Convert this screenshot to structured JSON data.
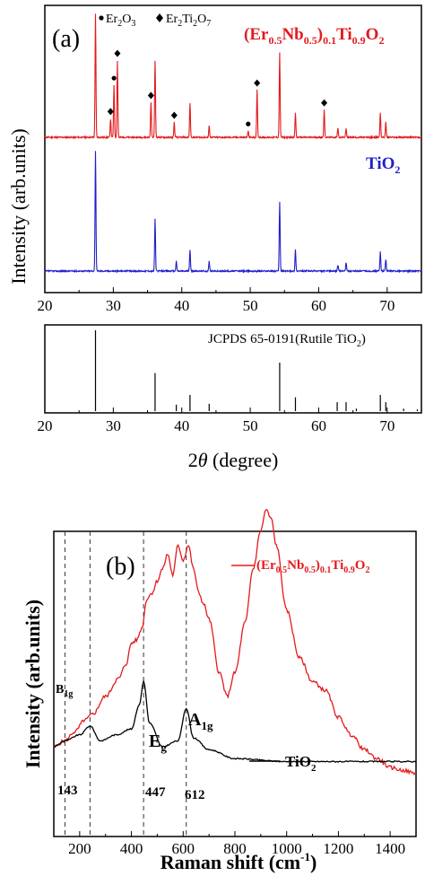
{
  "chart_data": [
    {
      "panel": "(a)",
      "type": "line",
      "xlabel": "2θ (degree)",
      "ylabel": "Intensity (arb.units)",
      "xlim": [
        20,
        75
      ],
      "xticks": [
        "20",
        "30",
        "40",
        "50",
        "60",
        "70"
      ],
      "marker_legend": {
        "dot": "Er2O3",
        "diamond": "Er2Ti2O7"
      },
      "series": [
        {
          "name": "(Er0.5Nb0.5)0.1Ti0.9O2",
          "color": "#e31a1c",
          "peaks": [
            {
              "x": 27.4,
              "h": 1.0
            },
            {
              "x": 29.6,
              "h": 0.15
            },
            {
              "x": 30.1,
              "h": 0.42
            },
            {
              "x": 30.6,
              "h": 0.62
            },
            {
              "x": 35.5,
              "h": 0.28
            },
            {
              "x": 36.1,
              "h": 0.62
            },
            {
              "x": 38.9,
              "h": 0.12
            },
            {
              "x": 41.2,
              "h": 0.28
            },
            {
              "x": 44.0,
              "h": 0.09
            },
            {
              "x": 49.7,
              "h": 0.05
            },
            {
              "x": 51.0,
              "h": 0.38
            },
            {
              "x": 54.3,
              "h": 0.68
            },
            {
              "x": 56.6,
              "h": 0.2
            },
            {
              "x": 60.8,
              "h": 0.22
            },
            {
              "x": 62.8,
              "h": 0.08
            },
            {
              "x": 64.0,
              "h": 0.07
            },
            {
              "x": 69.0,
              "h": 0.2
            },
            {
              "x": 69.8,
              "h": 0.12
            }
          ],
          "markers": [
            {
              "x": 29.6,
              "type": "diamond"
            },
            {
              "x": 30.1,
              "type": "dot"
            },
            {
              "x": 30.6,
              "type": "diamond"
            },
            {
              "x": 35.5,
              "type": "diamond"
            },
            {
              "x": 38.9,
              "type": "diamond"
            },
            {
              "x": 49.7,
              "type": "dot"
            },
            {
              "x": 51.0,
              "type": "diamond"
            },
            {
              "x": 60.8,
              "type": "diamond"
            }
          ]
        },
        {
          "name": "TiO2",
          "color": "#1f1fcc",
          "peaks": [
            {
              "x": 27.4,
              "h": 1.0
            },
            {
              "x": 36.1,
              "h": 0.43
            },
            {
              "x": 39.2,
              "h": 0.08
            },
            {
              "x": 41.2,
              "h": 0.18
            },
            {
              "x": 44.0,
              "h": 0.08
            },
            {
              "x": 54.3,
              "h": 0.58
            },
            {
              "x": 56.6,
              "h": 0.18
            },
            {
              "x": 62.8,
              "h": 0.05
            },
            {
              "x": 64.0,
              "h": 0.07
            },
            {
              "x": 69.0,
              "h": 0.16
            },
            {
              "x": 69.8,
              "h": 0.1
            }
          ]
        }
      ],
      "reference": {
        "label": "JCPDS 65-0191(Rutile TiO2)",
        "lines": [
          {
            "x": 27.4,
            "h": 100
          },
          {
            "x": 36.1,
            "h": 47
          },
          {
            "x": 39.2,
            "h": 8
          },
          {
            "x": 41.2,
            "h": 20
          },
          {
            "x": 44.0,
            "h": 9
          },
          {
            "x": 54.3,
            "h": 60
          },
          {
            "x": 56.6,
            "h": 17
          },
          {
            "x": 62.7,
            "h": 11
          },
          {
            "x": 64.0,
            "h": 11
          },
          {
            "x": 65.5,
            "h": 3
          },
          {
            "x": 69.0,
            "h": 20
          },
          {
            "x": 69.8,
            "h": 11
          },
          {
            "x": 72.4,
            "h": 3
          },
          {
            "x": 74.4,
            "h": 2
          }
        ]
      }
    },
    {
      "panel": "(b)",
      "type": "line",
      "xlabel": "Raman shift (cm-1)",
      "ylabel": "Intensity (arb.units)",
      "xlim": [
        100,
        1500
      ],
      "xticks": [
        "200",
        "400",
        "600",
        "800",
        "1000",
        "1200",
        "1400"
      ],
      "dashed_lines_x": [
        143,
        240,
        447,
        612
      ],
      "peak_labels": [
        {
          "text": "B1g",
          "x": 143
        },
        {
          "text": "Eg",
          "x": 447
        },
        {
          "text": "A1g",
          "x": 612
        }
      ],
      "position_labels": [
        "143",
        "447",
        "612"
      ],
      "series": [
        {
          "name": "(Er0.5Nb0.5)0.1Ti0.9O2",
          "color": "#e31a1c",
          "points": [
            [
              100,
              0.2
            ],
            [
              143,
              0.22
            ],
            [
              180,
              0.25
            ],
            [
              220,
              0.29
            ],
            [
              250,
              0.31
            ],
            [
              300,
              0.37
            ],
            [
              350,
              0.43
            ],
            [
              380,
              0.48
            ],
            [
              400,
              0.55
            ],
            [
              420,
              0.56
            ],
            [
              440,
              0.6
            ],
            [
              460,
              0.7
            ],
            [
              480,
              0.72
            ],
            [
              500,
              0.76
            ],
            [
              520,
              0.8
            ],
            [
              540,
              0.85
            ],
            [
              560,
              0.78
            ],
            [
              580,
              0.88
            ],
            [
              600,
              0.83
            ],
            [
              620,
              0.88
            ],
            [
              640,
              0.8
            ],
            [
              660,
              0.72
            ],
            [
              680,
              0.68
            ],
            [
              700,
              0.63
            ],
            [
              740,
              0.45
            ],
            [
              770,
              0.37
            ],
            [
              800,
              0.45
            ],
            [
              840,
              0.62
            ],
            [
              870,
              0.8
            ],
            [
              900,
              0.93
            ],
            [
              920,
              1.0
            ],
            [
              940,
              0.97
            ],
            [
              960,
              0.88
            ],
            [
              1000,
              0.66
            ],
            [
              1050,
              0.5
            ],
            [
              1100,
              0.42
            ],
            [
              1150,
              0.39
            ],
            [
              1200,
              0.3
            ],
            [
              1250,
              0.24
            ],
            [
              1300,
              0.19
            ],
            [
              1350,
              0.16
            ],
            [
              1400,
              0.13
            ],
            [
              1450,
              0.12
            ],
            [
              1500,
              0.11
            ]
          ]
        },
        {
          "name": "TiO2",
          "color": "#000000",
          "points": [
            [
              100,
              0.2
            ],
            [
              143,
              0.22
            ],
            [
              200,
              0.24
            ],
            [
              240,
              0.27
            ],
            [
              280,
              0.22
            ],
            [
              340,
              0.24
            ],
            [
              400,
              0.26
            ],
            [
              430,
              0.34
            ],
            [
              447,
              0.42
            ],
            [
              470,
              0.28
            ],
            [
              520,
              0.2
            ],
            [
              580,
              0.22
            ],
            [
              612,
              0.33
            ],
            [
              640,
              0.23
            ],
            [
              700,
              0.19
            ],
            [
              800,
              0.16
            ],
            [
              1000,
              0.15
            ],
            [
              1200,
              0.15
            ],
            [
              1500,
              0.15
            ]
          ]
        }
      ]
    }
  ]
}
